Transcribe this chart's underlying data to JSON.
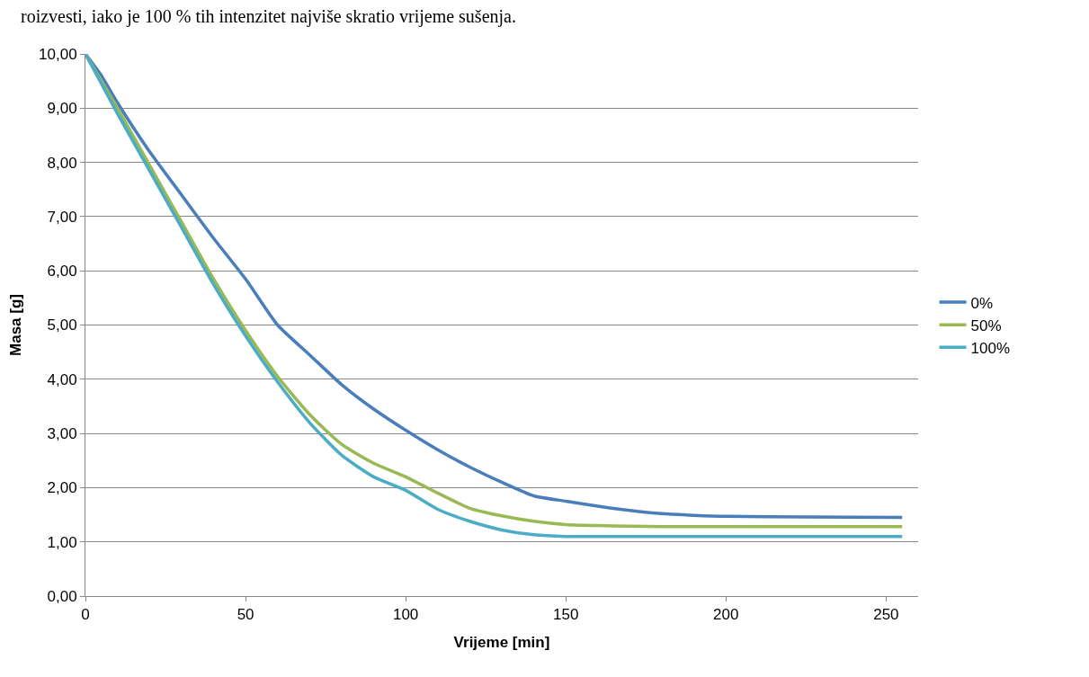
{
  "chart_data": {
    "type": "line",
    "annotations": [
      "roizvesti, iako je 100 % tih intenzitet najviše skratio vrijeme sušenja."
    ],
    "xlabel": "Vrijeme [min]",
    "ylabel": "Masa [g]",
    "x": [
      0,
      5,
      10,
      20,
      30,
      40,
      50,
      60,
      70,
      80,
      90,
      100,
      110,
      120,
      130,
      140,
      150,
      160,
      170,
      180,
      190,
      200,
      225,
      255
    ],
    "series": [
      {
        "name": "0%",
        "color": "#4a7ebb",
        "values": [
          10,
          9.6,
          9.1,
          8.2,
          7.4,
          6.6,
          5.85,
          5.0,
          4.45,
          3.9,
          3.45,
          3.06,
          2.7,
          2.38,
          2.1,
          1.85,
          1.75,
          1.66,
          1.58,
          1.52,
          1.49,
          1.47,
          1.46,
          1.45
        ]
      },
      {
        "name": "50%",
        "color": "#98b954",
        "values": [
          10,
          9.5,
          9.0,
          7.95,
          6.9,
          5.85,
          4.9,
          4.05,
          3.35,
          2.8,
          2.45,
          2.2,
          1.9,
          1.62,
          1.48,
          1.38,
          1.32,
          1.3,
          1.29,
          1.28,
          1.28,
          1.28,
          1.28,
          1.28
        ]
      },
      {
        "name": "100%",
        "color": "#4bacc6",
        "values": [
          10,
          9.45,
          8.9,
          7.85,
          6.8,
          5.75,
          4.8,
          3.95,
          3.2,
          2.6,
          2.2,
          1.95,
          1.6,
          1.38,
          1.22,
          1.13,
          1.1,
          1.1,
          1.1,
          1.1,
          1.1,
          1.1,
          1.1,
          1.1
        ]
      }
    ],
    "xlim": [
      0,
      260
    ],
    "xticks": [
      0,
      50,
      100,
      150,
      200,
      250
    ],
    "ylim": [
      0,
      10
    ],
    "yticks": [
      {
        "value": 0,
        "label": "0,00"
      },
      {
        "value": 1,
        "label": "1,00"
      },
      {
        "value": 2,
        "label": "2,00"
      },
      {
        "value": 3,
        "label": "3,00"
      },
      {
        "value": 4,
        "label": "4,00"
      },
      {
        "value": 5,
        "label": "5,00"
      },
      {
        "value": 6,
        "label": "6,00"
      },
      {
        "value": 7,
        "label": "7,00"
      },
      {
        "value": 8,
        "label": "8,00"
      },
      {
        "value": 9,
        "label": "9,00"
      },
      {
        "value": 10,
        "label": "10,00"
      }
    ],
    "grid": "y",
    "legend": "right",
    "marker": "none",
    "line_style": "solid"
  }
}
